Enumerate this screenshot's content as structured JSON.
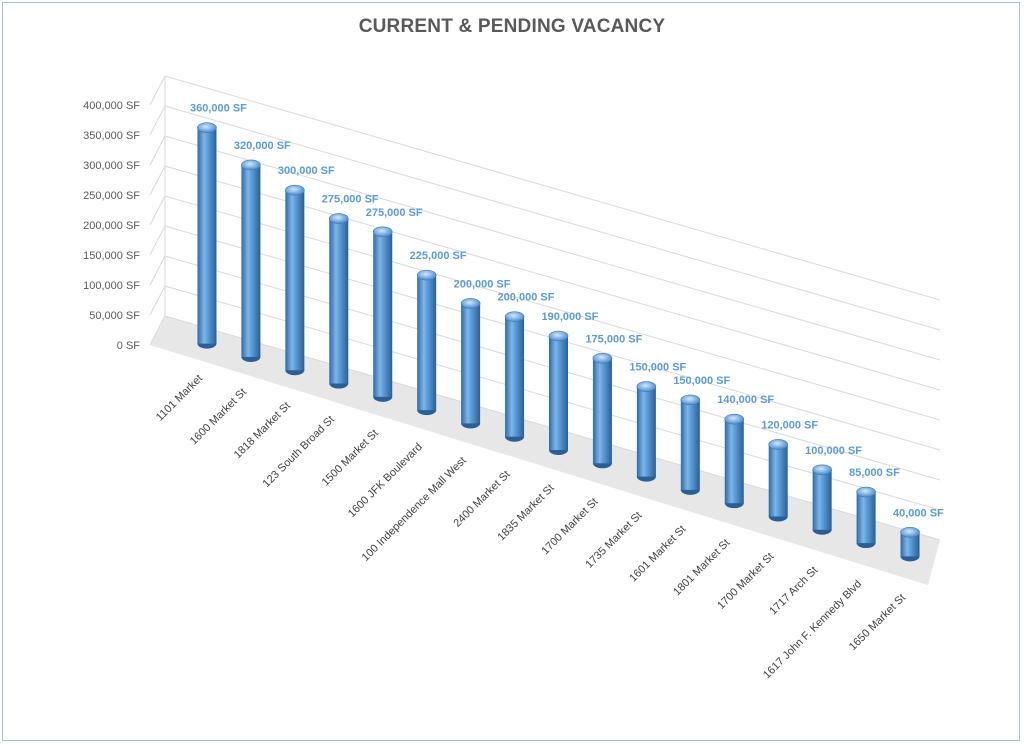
{
  "chart_data": {
    "type": "bar",
    "title": "CURRENT & PENDING VACANCY",
    "xlabel": "",
    "ylabel": "",
    "ylim": [
      0,
      400000
    ],
    "yticks": [
      "0 SF",
      "50,000 SF",
      "100,000 SF",
      "150,000 SF",
      "200,000 SF",
      "250,000 SF",
      "300,000 SF",
      "350,000 SF",
      "400,000 SF"
    ],
    "ytick_values": [
      0,
      50000,
      100000,
      150000,
      200000,
      250000,
      300000,
      350000,
      400000
    ],
    "categories": [
      "1101 Market",
      "1600 Market St",
      "1818 Market St",
      "123 South Broad St",
      "1500 Market St",
      "1600 JFK Boulevard",
      "100 Independence Mall West",
      "2400 Market St",
      "1835 Market St",
      "1700 Market St",
      "1735 Market St",
      "1601 Market St",
      "1801 Market St",
      "1700 Market St",
      "1717 Arch St",
      "1617 John F. Kennedy Blvd",
      "1650 Market St"
    ],
    "values": [
      360000,
      320000,
      300000,
      275000,
      275000,
      225000,
      200000,
      200000,
      190000,
      175000,
      150000,
      150000,
      140000,
      120000,
      100000,
      85000,
      40000
    ],
    "data_labels": [
      "360,000 SF",
      "320,000 SF",
      "300,000 SF",
      "275,000 SF",
      "275,000 SF",
      "225,000 SF",
      "200,000 SF",
      "200,000 SF",
      "190,000 SF",
      "175,000 SF",
      "150,000 SF",
      "150,000 SF",
      "140,000 SF",
      "120,000 SF",
      "100,000 SF",
      "85,000 SF",
      "40,000 SF"
    ],
    "style": "3d-cylinder",
    "grid": true,
    "legend": "none",
    "colors": {
      "bar": "#5b9bd5",
      "bar_dark": "#2e6aa6",
      "bar_light": "#a9cdf0",
      "label": "#5b9bd5",
      "gridline": "#d9d9d9",
      "floor": "#e7e7e7",
      "border": "#a8c0d8"
    }
  }
}
